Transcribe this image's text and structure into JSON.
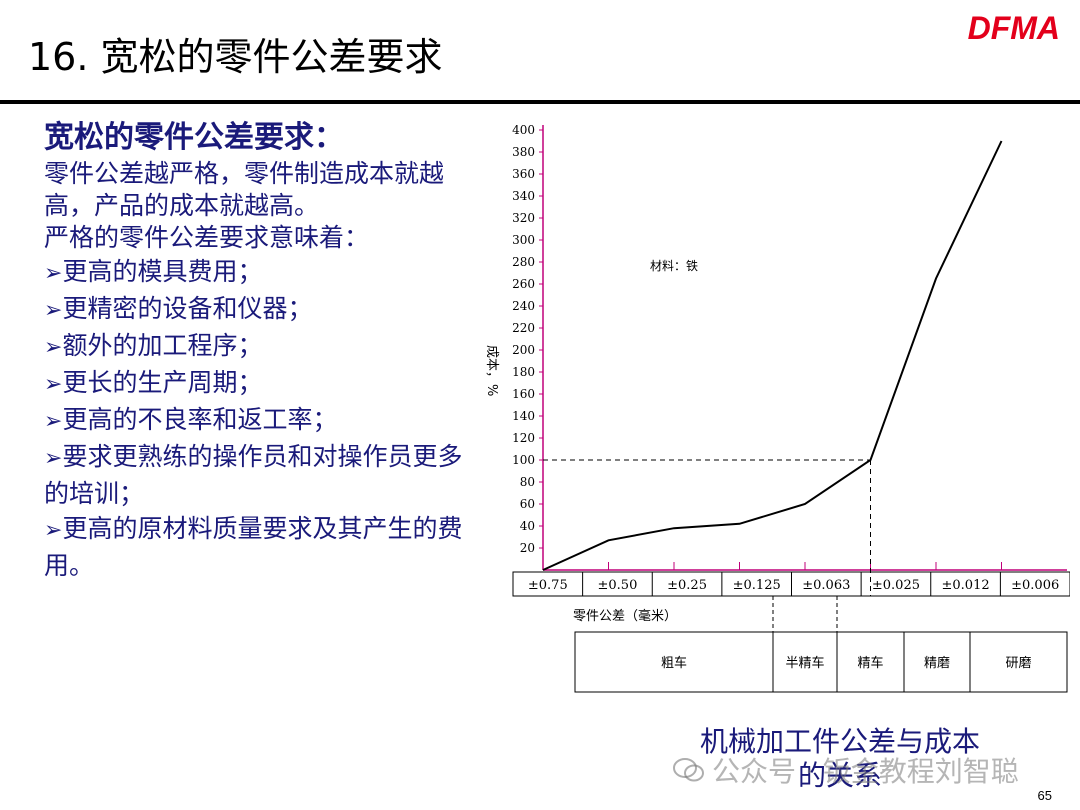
{
  "header": {
    "title": "16. 宽松的零件公差要求",
    "logo": "DFMA"
  },
  "left": {
    "heading": "宽松的零件公差要求：",
    "paragraph1": "零件公差越严格，零件制造成本就越高，产品的成本就越高。",
    "paragraph2": "严格的零件公差要求意味着：",
    "bullets": [
      "更高的模具费用；",
      "更精密的设备和仪器；",
      "额外的加工程序；",
      "更长的生产周期；",
      "更高的不良率和返工率；",
      "要求更熟练的操作员和对操作员更多的培训；",
      "更高的原材料质量要求及其产生的费用。"
    ]
  },
  "chart_data": {
    "type": "line",
    "ylabel": "成本，%",
    "xlabel": "零件公差（毫米）",
    "annotation": "材料：铁",
    "ylim": [
      0,
      400
    ],
    "yticks": [
      20,
      40,
      60,
      80,
      100,
      120,
      140,
      160,
      180,
      200,
      220,
      240,
      260,
      280,
      300,
      320,
      340,
      360,
      380,
      400
    ],
    "categories": [
      "±0.75",
      "±0.50",
      "±0.25",
      "±0.125",
      "±0.063",
      "±0.025",
      "±0.012",
      "±0.006"
    ],
    "values": [
      0,
      27,
      38,
      42,
      60,
      100,
      265,
      390
    ],
    "reference": {
      "category": "±0.025",
      "value": 100
    },
    "processes": [
      {
        "label": "粗车",
        "span": 4
      },
      {
        "label": "半精车",
        "span": 1
      },
      {
        "label": "精车",
        "span": 1
      },
      {
        "label": "精磨",
        "span": 1
      },
      {
        "label": "研磨",
        "span": 1
      }
    ],
    "colors": {
      "axis": "#c0007a",
      "line": "#000000"
    }
  },
  "caption": "机械加工件公差与成本的关系",
  "watermark": "公众号 · 钣金教程刘智聪",
  "page_number": "65"
}
